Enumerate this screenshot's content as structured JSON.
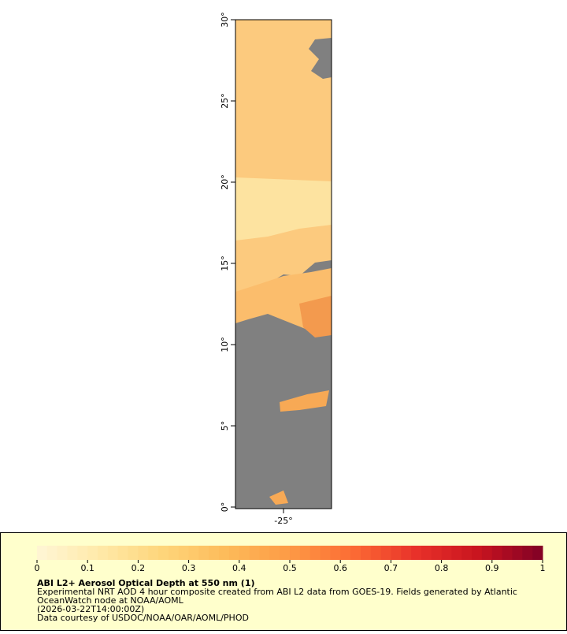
{
  "map": {
    "lat_range": [
      0,
      30
    ],
    "lat_ticks": [
      {
        "value": 0,
        "label": "0°"
      },
      {
        "value": 5,
        "label": "5°"
      },
      {
        "value": 10,
        "label": "10°"
      },
      {
        "value": 15,
        "label": "15°"
      },
      {
        "value": 20,
        "label": "20°"
      },
      {
        "value": 25,
        "label": "25°"
      },
      {
        "value": 30,
        "label": "30°"
      }
    ],
    "lon_range": [
      -28,
      -22
    ],
    "lon_ticks": [
      {
        "value": -25,
        "label": "-25°"
      }
    ]
  },
  "colorbar": {
    "range": [
      0,
      1
    ],
    "ticks": [
      0,
      0.1,
      0.2,
      0.3,
      0.4,
      0.5,
      0.6,
      0.7,
      0.8,
      0.9,
      1
    ],
    "colors": [
      "#fff6d6",
      "#ffe9a8",
      "#fed57a",
      "#fdbb5a",
      "#fd9a45",
      "#fc6b34",
      "#e8312a",
      "#c8141f",
      "#800026"
    ]
  },
  "legend": {
    "title": "ABI L2+ Aerosol Optical Depth at 550 nm (1)",
    "lines": [
      "Experimental NRT AOD 4 hour composite created from ABI L2 data from GOES-19. Fields generated by Atlantic",
      "OceanWatch node at NOAA/AOML",
      "(2026-03-22T14:00:00Z)",
      "Data courtesy of USDOC/NOAA/OAR/AOML/PHOD"
    ]
  }
}
